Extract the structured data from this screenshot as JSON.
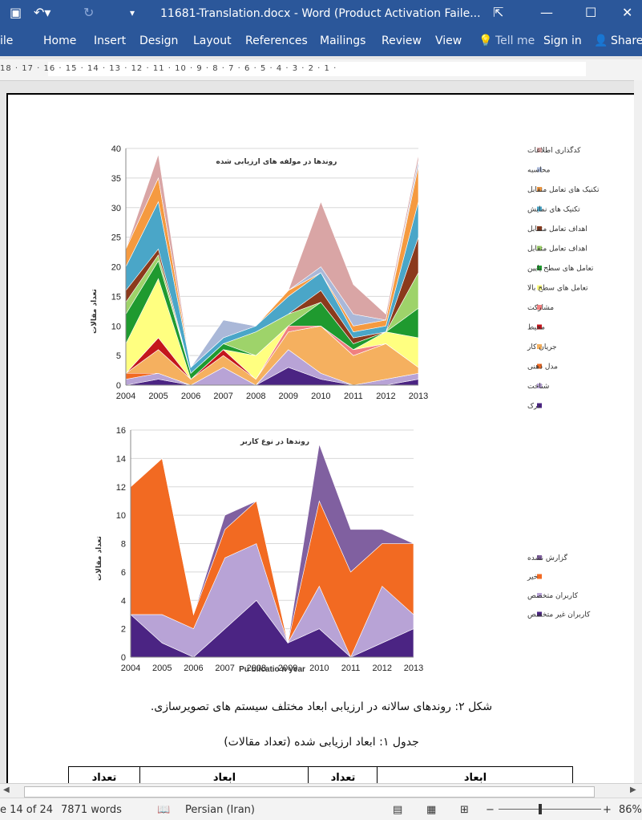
{
  "window": {
    "title": "11681-Translation.docx - Word (Product Activation Faile...",
    "controls": [
      "ribbon-display-icon",
      "minimize-icon",
      "maximize-icon",
      "close-icon"
    ]
  },
  "ribbon": {
    "file": "ile",
    "tabs": [
      "Home",
      "Insert",
      "Design",
      "Layout",
      "References",
      "Mailings",
      "Review",
      "View"
    ],
    "tell_me": "Tell me",
    "sign_in": "Sign in",
    "share": "Share"
  },
  "ruler": {
    "scale": "18 · 17 · 16 · 15 · 14 · 13 · 12 · 11 · 10 · 9 · 8 · 7 · 6 · 5 · 4 · 3 · 2 · 1 ·"
  },
  "chart_data": [
    {
      "type": "area",
      "title": "روندها در مولفه های ارزیابی شده",
      "ylabel": "تعداد مقالات",
      "ylim": [
        0,
        40
      ],
      "yticks": [
        0,
        5,
        10,
        15,
        20,
        25,
        30,
        35,
        40
      ],
      "x": [
        "2004",
        "2005",
        "2006",
        "2007",
        "2008",
        "2009",
        "2010",
        "2011",
        "2012",
        "2013"
      ],
      "legend_position": "right",
      "series": [
        {
          "name": "درک",
          "color": "#4b2483",
          "values": [
            0,
            1,
            0,
            0,
            0,
            3,
            1,
            0,
            0,
            1
          ]
        },
        {
          "name": "شناخت",
          "color": "#b8a3d6",
          "values": [
            1,
            1,
            0,
            3,
            0,
            3,
            1,
            0,
            1,
            1
          ]
        },
        {
          "name": "مدل ذهنی",
          "color": "#f26a22",
          "values": [
            1,
            0,
            0,
            0,
            0,
            0,
            0,
            0,
            0,
            0
          ]
        },
        {
          "name": "جریان کار",
          "color": "#f5b05f",
          "values": [
            0,
            4,
            1,
            2,
            1,
            3,
            8,
            5,
            6,
            1
          ]
        },
        {
          "name": "محیط",
          "color": "#c4161c",
          "values": [
            0,
            2,
            0,
            1,
            0,
            0,
            0,
            0,
            0,
            0
          ]
        },
        {
          "name": "مشارکت",
          "color": "#f08080",
          "values": [
            0,
            0,
            0,
            0,
            0,
            1,
            0,
            1,
            0,
            0
          ]
        },
        {
          "name": "تعامل های سطح بالا",
          "color": "#ffff80",
          "values": [
            5,
            10,
            0,
            0,
            4,
            0,
            0,
            0,
            2,
            5
          ]
        },
        {
          "name": "تعامل های سطح پایین",
          "color": "#1f9a2f",
          "values": [
            5,
            3,
            1,
            1,
            0,
            0,
            4,
            1,
            0,
            5
          ]
        },
        {
          "name": "اهداف تعامل متقابل",
          "color": "#9ed36a",
          "values": [
            2,
            1,
            0,
            0,
            4,
            2,
            0,
            0,
            0,
            6
          ]
        },
        {
          "name": "اهداف تعامل متقابل",
          "color": "#8b3a1c",
          "values": [
            2,
            1,
            0,
            0,
            0,
            0,
            2,
            1,
            0,
            6
          ]
        },
        {
          "name": "تکنیک های نمایش",
          "color": "#4aa6c8",
          "values": [
            4,
            8,
            1,
            1,
            1,
            3,
            3,
            1,
            1,
            6
          ]
        },
        {
          "name": "تکنیک های تعامل متقابل",
          "color": "#f59a40",
          "values": [
            3,
            4,
            0,
            0,
            0,
            1,
            0,
            1,
            1,
            6
          ]
        },
        {
          "name": "محاسبه",
          "color": "#aab8d8",
          "values": [
            0,
            0,
            0,
            3,
            0,
            0,
            1,
            2,
            0,
            1
          ]
        },
        {
          "name": "کدگذاری اطلاعات",
          "color": "#d9a5a5",
          "values": [
            0,
            4,
            0,
            0,
            0,
            0,
            11,
            5,
            1,
            1
          ]
        }
      ]
    },
    {
      "type": "area",
      "title": "روندها در نوع کاربر",
      "ylabel": "تعداد مقالات",
      "xlabel": "Pu blicatio n year",
      "ylim": [
        0,
        16
      ],
      "yticks": [
        0,
        2,
        4,
        6,
        8,
        10,
        12,
        14,
        16
      ],
      "x": [
        "2004",
        "2005",
        "2006",
        "2007",
        "2008",
        "2009",
        "2010",
        "2011",
        "2012",
        "2013"
      ],
      "legend_position": "right",
      "series": [
        {
          "name": "کاربران غیر متخصص",
          "color": "#4b2483",
          "values": [
            3,
            1,
            0,
            2,
            4,
            1,
            2,
            0,
            1,
            2
          ]
        },
        {
          "name": "کاربران متخصص",
          "color": "#b8a3d6",
          "values": [
            0,
            2,
            2,
            5,
            4,
            0,
            3,
            0,
            4,
            1
          ]
        },
        {
          "name": "خیر",
          "color": "#f26a22",
          "values": [
            9,
            11,
            1,
            2,
            3,
            0,
            6,
            6,
            3,
            5
          ]
        },
        {
          "name": "گزارش نشده",
          "color": "#8060a0",
          "values": [
            0,
            0,
            0,
            1,
            0,
            0,
            4,
            3,
            1,
            0
          ]
        }
      ]
    }
  ],
  "figure_caption": "شکل ۲: روندهای سالانه در ارزیابی ابعاد مختلف سیستم های تصویرسازی.",
  "table_caption": "جدول ۱: ابعاد ارزیابی شده (تعداد مقالات)",
  "table_headers": [
    "تعداد",
    "ابعاد",
    "تعداد",
    "ابعاد"
  ],
  "status": {
    "page": "e 14 of 24",
    "words": "7871 words",
    "language": "Persian (Iran)",
    "zoom": "86%"
  }
}
